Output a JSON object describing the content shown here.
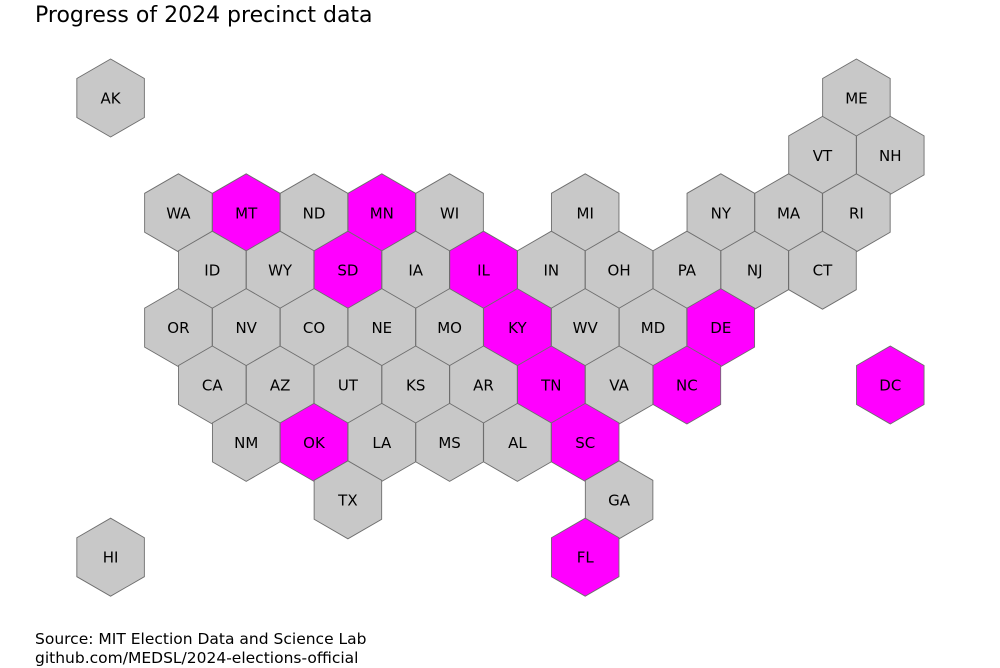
{
  "title": "Progress of 2024 precinct data",
  "source": {
    "line1": "Source: MIT Election Data and Science Lab",
    "line2": "github.com/MEDSL/2024-elections-official"
  },
  "colors": {
    "complete": "#ff00ff",
    "pending": "#c8c8c8",
    "stroke": "#6e6e6e"
  },
  "states": [
    {
      "abbr": "AK",
      "row": 0,
      "col": 0,
      "complete": false
    },
    {
      "abbr": "ME",
      "row": 0,
      "col": 11,
      "complete": false
    },
    {
      "abbr": "VT",
      "row": 1,
      "col": 10,
      "complete": false
    },
    {
      "abbr": "NH",
      "row": 1,
      "col": 11,
      "complete": false
    },
    {
      "abbr": "WA",
      "row": 2,
      "col": 1,
      "complete": false
    },
    {
      "abbr": "MT",
      "row": 2,
      "col": 2,
      "complete": true
    },
    {
      "abbr": "ND",
      "row": 2,
      "col": 3,
      "complete": false
    },
    {
      "abbr": "MN",
      "row": 2,
      "col": 4,
      "complete": true
    },
    {
      "abbr": "WI",
      "row": 2,
      "col": 5,
      "complete": false
    },
    {
      "abbr": "MI",
      "row": 2,
      "col": 7,
      "complete": false
    },
    {
      "abbr": "NY",
      "row": 2,
      "col": 9,
      "complete": false
    },
    {
      "abbr": "MA",
      "row": 2,
      "col": 10,
      "complete": false
    },
    {
      "abbr": "RI",
      "row": 2,
      "col": 11,
      "complete": false
    },
    {
      "abbr": "ID",
      "row": 3,
      "col": 1,
      "complete": false
    },
    {
      "abbr": "WY",
      "row": 3,
      "col": 2,
      "complete": false
    },
    {
      "abbr": "SD",
      "row": 3,
      "col": 3,
      "complete": true
    },
    {
      "abbr": "IA",
      "row": 3,
      "col": 4,
      "complete": false
    },
    {
      "abbr": "IL",
      "row": 3,
      "col": 5,
      "complete": true
    },
    {
      "abbr": "IN",
      "row": 3,
      "col": 6,
      "complete": false
    },
    {
      "abbr": "OH",
      "row": 3,
      "col": 7,
      "complete": false
    },
    {
      "abbr": "PA",
      "row": 3,
      "col": 8,
      "complete": false
    },
    {
      "abbr": "NJ",
      "row": 3,
      "col": 9,
      "complete": false
    },
    {
      "abbr": "CT",
      "row": 3,
      "col": 10,
      "complete": false
    },
    {
      "abbr": "OR",
      "row": 4,
      "col": 1,
      "complete": false
    },
    {
      "abbr": "NV",
      "row": 4,
      "col": 2,
      "complete": false
    },
    {
      "abbr": "CO",
      "row": 4,
      "col": 3,
      "complete": false
    },
    {
      "abbr": "NE",
      "row": 4,
      "col": 4,
      "complete": false
    },
    {
      "abbr": "MO",
      "row": 4,
      "col": 5,
      "complete": false
    },
    {
      "abbr": "KY",
      "row": 4,
      "col": 6,
      "complete": true
    },
    {
      "abbr": "WV",
      "row": 4,
      "col": 7,
      "complete": false
    },
    {
      "abbr": "MD",
      "row": 4,
      "col": 8,
      "complete": false
    },
    {
      "abbr": "DE",
      "row": 4,
      "col": 9,
      "complete": true
    },
    {
      "abbr": "CA",
      "row": 5,
      "col": 1,
      "complete": false
    },
    {
      "abbr": "AZ",
      "row": 5,
      "col": 2,
      "complete": false
    },
    {
      "abbr": "UT",
      "row": 5,
      "col": 3,
      "complete": false
    },
    {
      "abbr": "KS",
      "row": 5,
      "col": 4,
      "complete": false
    },
    {
      "abbr": "AR",
      "row": 5,
      "col": 5,
      "complete": false
    },
    {
      "abbr": "TN",
      "row": 5,
      "col": 6,
      "complete": true
    },
    {
      "abbr": "VA",
      "row": 5,
      "col": 7,
      "complete": false
    },
    {
      "abbr": "NC",
      "row": 5,
      "col": 8,
      "complete": true
    },
    {
      "abbr": "DC",
      "row": 5,
      "col": 11,
      "complete": true
    },
    {
      "abbr": "NM",
      "row": 6,
      "col": 2,
      "complete": false
    },
    {
      "abbr": "OK",
      "row": 6,
      "col": 3,
      "complete": true
    },
    {
      "abbr": "LA",
      "row": 6,
      "col": 4,
      "complete": false
    },
    {
      "abbr": "MS",
      "row": 6,
      "col": 5,
      "complete": false
    },
    {
      "abbr": "AL",
      "row": 6,
      "col": 6,
      "complete": false
    },
    {
      "abbr": "SC",
      "row": 6,
      "col": 7,
      "complete": true
    },
    {
      "abbr": "TX",
      "row": 7,
      "col": 3,
      "complete": false
    },
    {
      "abbr": "GA",
      "row": 7,
      "col": 7,
      "complete": false
    },
    {
      "abbr": "HI",
      "row": 8,
      "col": 0,
      "complete": false
    },
    {
      "abbr": "FL",
      "row": 8,
      "col": 7,
      "complete": true
    }
  ]
}
